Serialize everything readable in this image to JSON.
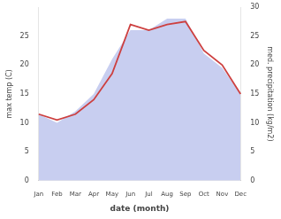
{
  "chart_data": {
    "type": "line",
    "categories": [
      "Jan",
      "Feb",
      "Mar",
      "Apr",
      "May",
      "Jun",
      "Jul",
      "Aug",
      "Sep",
      "Oct",
      "Nov",
      "Dec"
    ],
    "series": [
      {
        "type": "area",
        "color": "#c8cef0",
        "axis": "y2",
        "values": [
          11.5,
          10.0,
          12.0,
          15.0,
          21.0,
          26.0,
          26.0,
          28.0,
          28.0,
          22.0,
          19.5,
          15.0
        ]
      },
      {
        "type": "line",
        "color": "#cd4040",
        "axis": "y",
        "values": [
          11.5,
          10.5,
          11.5,
          14.0,
          18.5,
          27.0,
          26.0,
          27.0,
          27.5,
          22.5,
          20.0,
          15.0
        ]
      }
    ],
    "xlabel": "date (month)",
    "ylabel": "max temp (C)",
    "y2label": "med. precipitation (kg/m2)",
    "ylim": [
      0,
      30
    ],
    "yticks": [
      0,
      5,
      10,
      15,
      20,
      25
    ],
    "y2lim": [
      0,
      30
    ],
    "y2ticks": [
      0,
      5,
      10,
      15,
      20,
      25,
      30
    ],
    "grid": false
  }
}
